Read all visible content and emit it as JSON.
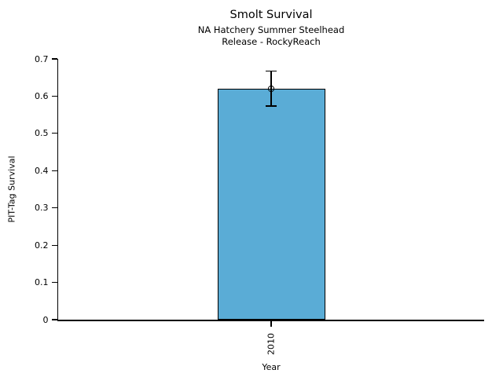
{
  "chart_data": {
    "type": "bar",
    "title": "Smolt Survival",
    "subtitle_lines": [
      "NA Hatchery Summer Steelhead",
      "Release - RockyReach"
    ],
    "xlabel": "Year",
    "ylabel": "PIT-Tag Survival",
    "categories": [
      "2010"
    ],
    "values": [
      0.62
    ],
    "error_bars": {
      "low": [
        0.573
      ],
      "high": [
        0.667
      ]
    },
    "point_markers": [
      0.62
    ],
    "ylim": [
      0,
      0.7
    ],
    "yticks": [
      0,
      0.1,
      0.2,
      0.3,
      0.4,
      0.5,
      0.6,
      0.7
    ],
    "ytick_labels": [
      "0",
      "0.1",
      "0.2",
      "0.3",
      "0.4",
      "0.5",
      "0.6",
      "0.7"
    ],
    "grid": false,
    "legend": "none",
    "bar_color": "#5aacd6",
    "bar_edge_color": "#000000",
    "error_color": "#000000",
    "background_color": "#ffffff"
  }
}
